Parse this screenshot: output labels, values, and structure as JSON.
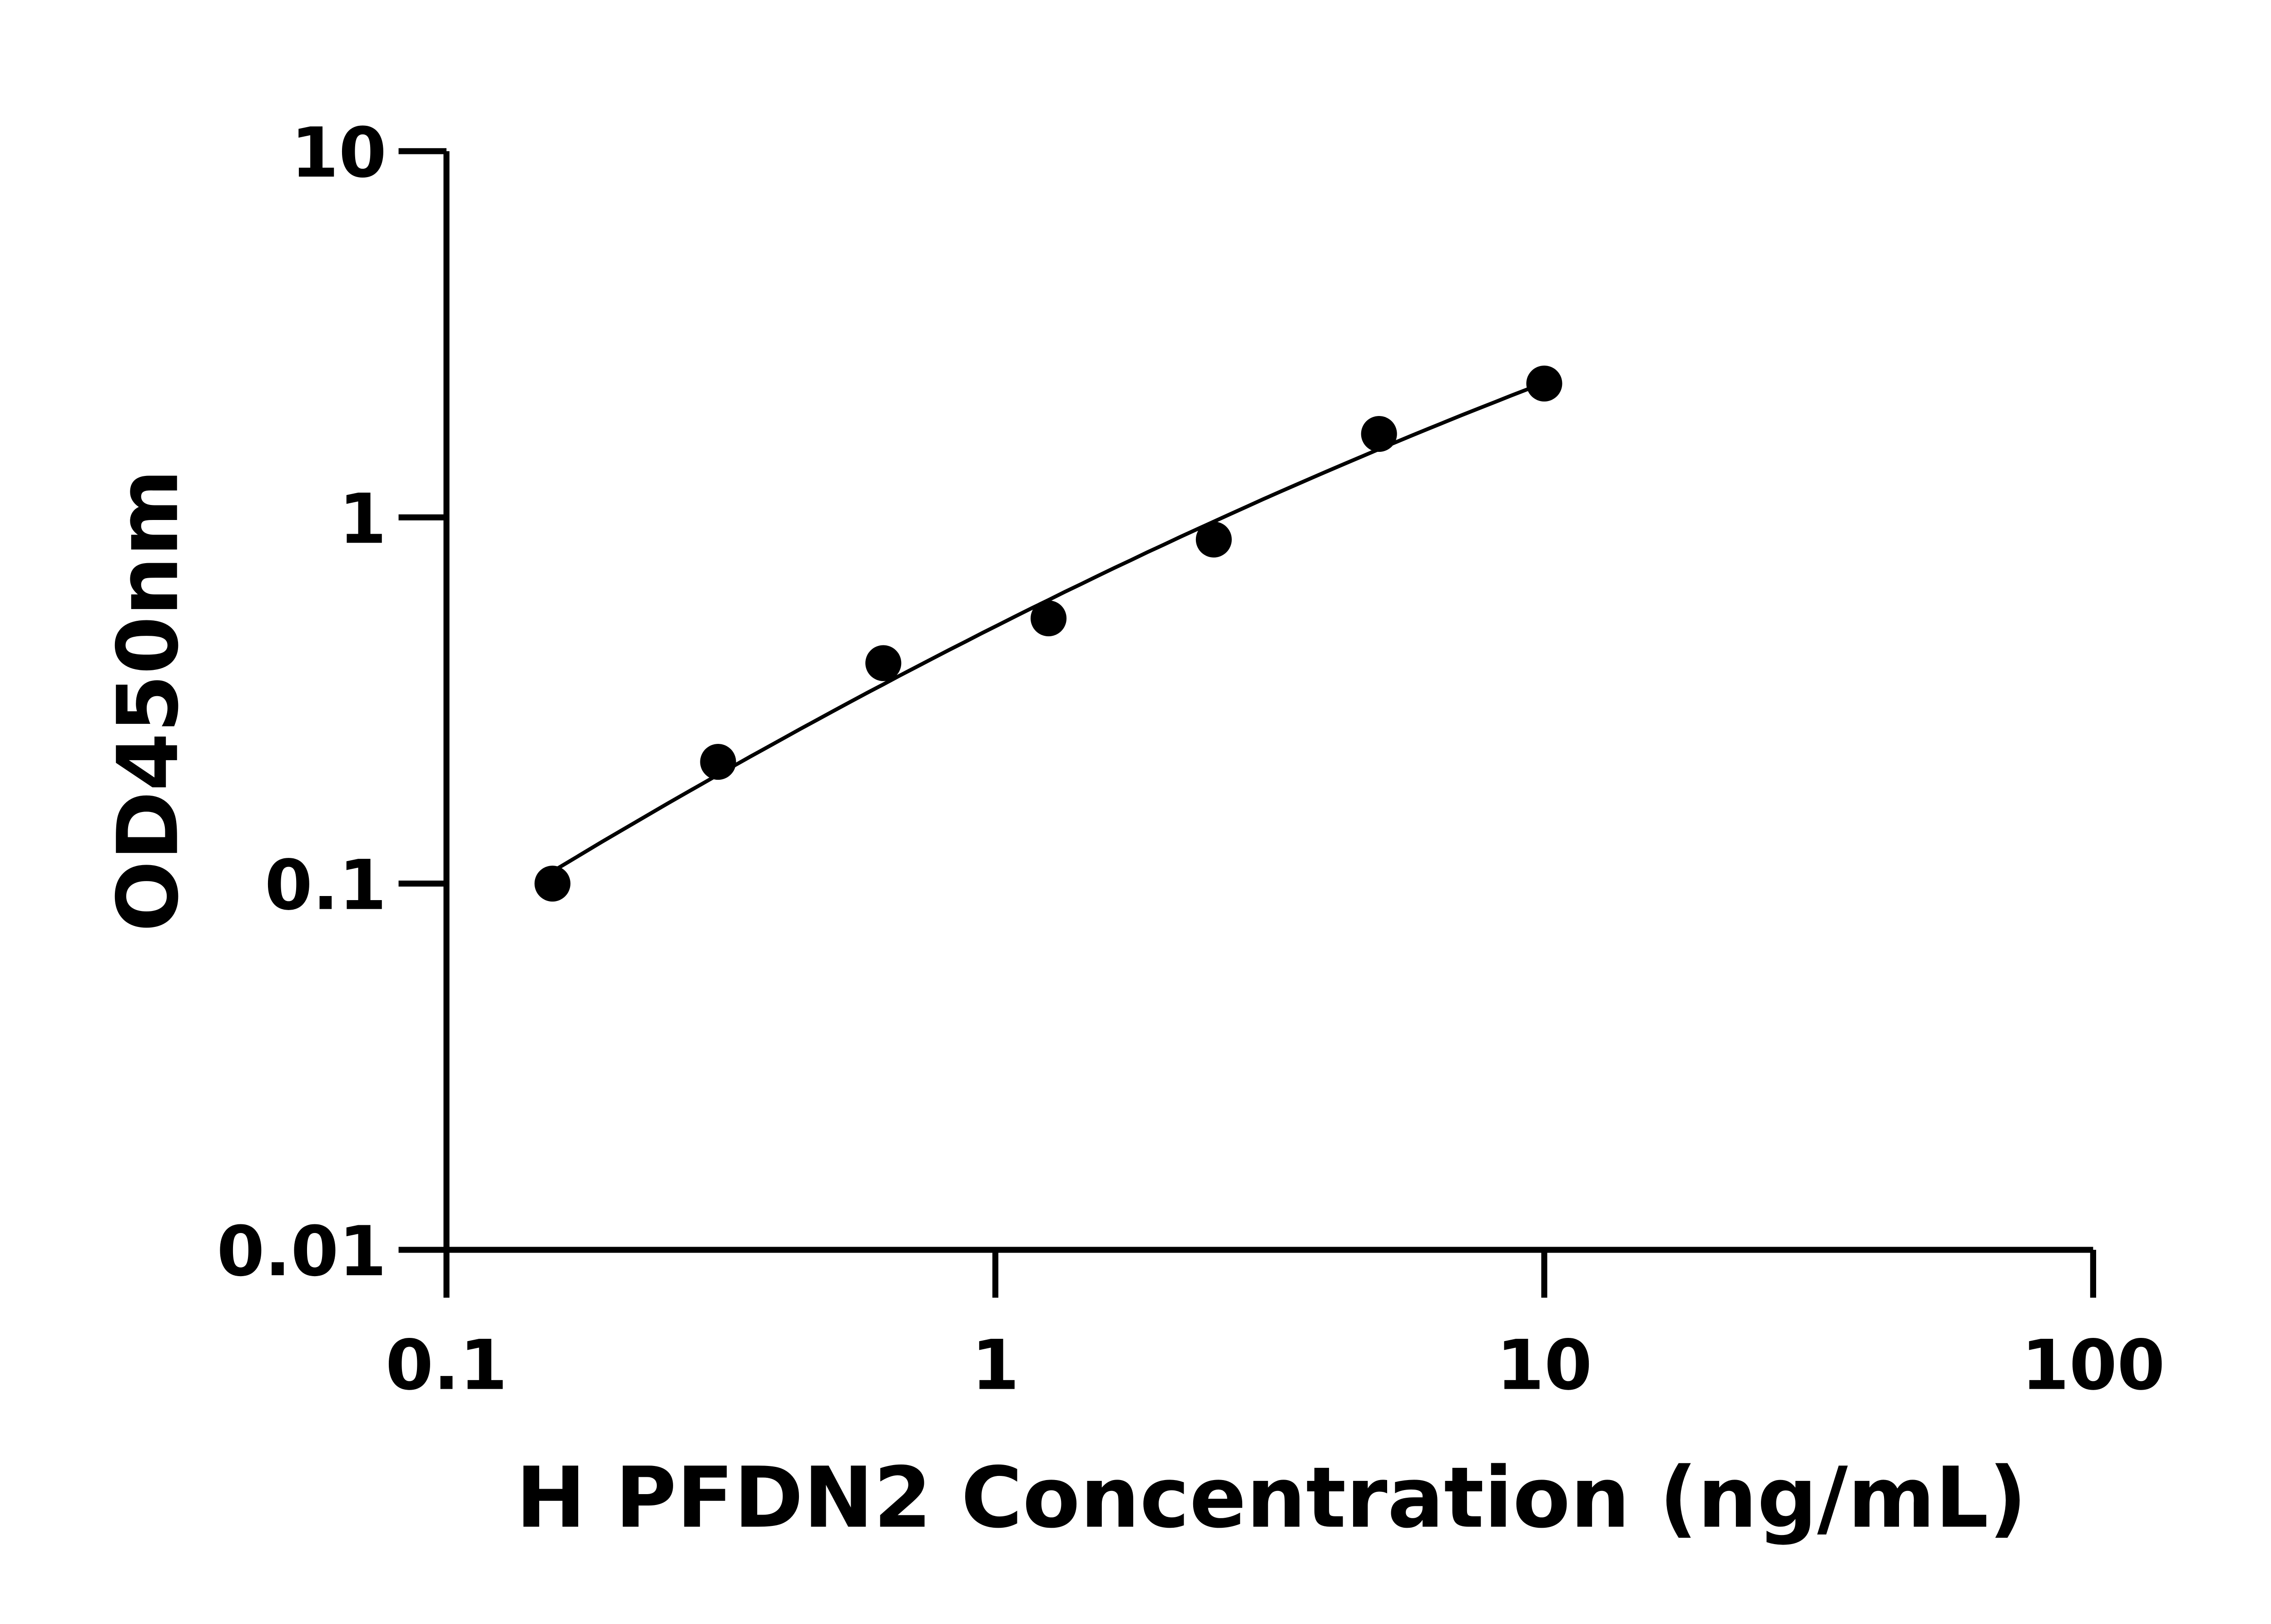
{
  "chart_data": {
    "type": "scatter",
    "title": "",
    "xlabel": "H PFDN2 Concentration (ng/mL)",
    "ylabel": "OD450nm",
    "x_scale": "log",
    "y_scale": "log",
    "xlim": [
      0.1,
      100
    ],
    "ylim": [
      0.01,
      10
    ],
    "x_ticks": [
      "0.1",
      "1",
      "10",
      "100"
    ],
    "y_ticks": [
      "0.01",
      "0.1",
      "1",
      "10"
    ],
    "grid": false,
    "legend": "none",
    "series": [
      {
        "x": [
          0.156,
          0.3125,
          0.625,
          1.25,
          2.5,
          5,
          10
        ],
        "y": [
          0.1,
          0.215,
          0.4,
          0.53,
          0.87,
          1.69,
          2.32
        ],
        "marker_color": "#000000",
        "fit_line": true
      }
    ]
  }
}
